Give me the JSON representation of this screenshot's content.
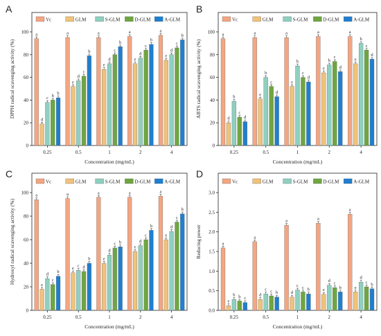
{
  "figure": {
    "colors": {
      "Vc": "#f4a582",
      "GLM": "#f0c27b",
      "S-GLM": "#8fd0c0",
      "D-GLM": "#6ea640",
      "A-GLM": "#1f7fd0"
    }
  },
  "chart_data": [
    {
      "type": "bar",
      "panel": "A",
      "categories": [
        "0.25",
        "0.5",
        "1",
        "2",
        "4"
      ],
      "legend": [
        "Vc",
        "GLM",
        "S-GLM",
        "D-GLM",
        "A-GLM"
      ],
      "xlabel": "Concentration (mg/mL)",
      "ylabel": "DPPH radical scavenging activity (%)",
      "ylim": [
        0,
        100
      ],
      "yticks": [
        0,
        20,
        40,
        60,
        80,
        100
      ],
      "series": [
        {
          "name": "Vc",
          "values": [
            94,
            95,
            95,
            96,
            97
          ],
          "labels": [
            "a",
            "a",
            "a",
            "a",
            "a"
          ]
        },
        {
          "name": "GLM",
          "values": [
            19,
            52,
            67,
            72,
            75
          ],
          "labels": [
            "d",
            "e",
            "e",
            "e",
            "e"
          ]
        },
        {
          "name": "S-GLM",
          "values": [
            38,
            57,
            72,
            77,
            80
          ],
          "labels": [
            "c",
            "d",
            "d",
            "d",
            "d"
          ]
        },
        {
          "name": "D-GLM",
          "values": [
            40,
            61,
            80,
            84,
            86
          ],
          "labels": [
            "b",
            "c",
            "c",
            "c",
            "c"
          ]
        },
        {
          "name": "A-GLM",
          "values": [
            42,
            79,
            87,
            89,
            93
          ],
          "labels": [
            "b",
            "b",
            "b",
            "b",
            "b"
          ]
        }
      ]
    },
    {
      "type": "bar",
      "panel": "B",
      "categories": [
        "0.25",
        "0.5",
        "1",
        "2",
        "4"
      ],
      "legend": [
        "Vc",
        "GLM",
        "S-GLM",
        "D-GLM",
        "A-GLM"
      ],
      "xlabel": "Concentration (mg/mL)",
      "ylabel": "ABTS radical scavenging activity (%)",
      "ylim": [
        0,
        100
      ],
      "yticks": [
        0,
        20,
        40,
        60,
        80,
        100
      ],
      "series": [
        {
          "name": "Vc",
          "values": [
            94,
            95,
            95,
            96,
            96
          ],
          "labels": [
            "a",
            "a",
            "a",
            "a",
            "a"
          ]
        },
        {
          "name": "GLM",
          "values": [
            20,
            41,
            52,
            64,
            72
          ],
          "labels": [
            "d",
            "e",
            "e",
            "e",
            "e"
          ]
        },
        {
          "name": "S-GLM",
          "values": [
            39,
            60,
            70,
            71,
            90
          ],
          "labels": [
            "b",
            "b",
            "b",
            "b",
            "b"
          ]
        },
        {
          "name": "D-GLM",
          "values": [
            25,
            52,
            60,
            74,
            84
          ],
          "labels": [
            "c",
            "c",
            "c",
            "c",
            "c"
          ]
        },
        {
          "name": "A-GLM",
          "values": [
            21,
            43,
            56,
            65,
            76
          ],
          "labels": [
            "d",
            "d",
            "d",
            "d",
            "d"
          ]
        }
      ]
    },
    {
      "type": "bar",
      "panel": "C",
      "categories": [
        "0.25",
        "0.5",
        "1",
        "2",
        "4"
      ],
      "legend": [
        "Vc",
        "GLM",
        "S-GLM",
        "D-GLM",
        "A-GLM"
      ],
      "xlabel": "Concentration (mg/mL)",
      "ylabel": "Hydroxyl radical scavenging activity (%)",
      "ylim": [
        0,
        100
      ],
      "yticks": [
        0,
        20,
        40,
        60,
        80,
        100
      ],
      "series": [
        {
          "name": "Vc",
          "values": [
            94,
            95,
            96,
            96,
            97
          ],
          "labels": [
            "a",
            "a",
            "a",
            "a",
            "a"
          ]
        },
        {
          "name": "GLM",
          "values": [
            18,
            32,
            40,
            50,
            60
          ],
          "labels": [
            "e",
            "e",
            "e",
            "e",
            "e"
          ]
        },
        {
          "name": "S-GLM",
          "values": [
            27,
            34,
            47,
            55,
            67
          ],
          "labels": [
            "d",
            "c",
            "d",
            "d",
            "d"
          ]
        },
        {
          "name": "D-GLM",
          "values": [
            22,
            33,
            53,
            60,
            75
          ],
          "labels": [
            "c",
            "d",
            "c",
            "c",
            "c"
          ]
        },
        {
          "name": "A-GLM",
          "values": [
            29,
            40,
            54,
            68,
            82
          ],
          "labels": [
            "b",
            "b",
            "b",
            "b",
            "b"
          ]
        }
      ]
    },
    {
      "type": "bar",
      "panel": "D",
      "categories": [
        "0.25",
        "0.5",
        "1",
        "2",
        "4"
      ],
      "legend": [
        "Vc",
        "GLM",
        "S-GLM",
        "D-GLM",
        "A-GLM"
      ],
      "xlabel": "Concentration (mg/mL)",
      "ylabel": "Reducing power",
      "ylim": [
        0,
        3.0
      ],
      "yticks": [
        0.0,
        0.5,
        1.0,
        1.5,
        2.0,
        2.5,
        3.0
      ],
      "ytick_labels": [
        "0.0",
        "0.5",
        "1.0",
        "1.5",
        "2.0",
        "2.5",
        "3.0"
      ],
      "series": [
        {
          "name": "Vc",
          "values": [
            1.59,
            1.75,
            2.17,
            2.22,
            2.45
          ],
          "labels": [
            "a",
            "a",
            "a",
            "a",
            "a"
          ]
        },
        {
          "name": "GLM",
          "values": [
            0.12,
            0.28,
            0.34,
            0.41,
            0.47
          ],
          "labels": [
            "e",
            "d",
            "d",
            "e",
            "e"
          ]
        },
        {
          "name": "S-GLM",
          "values": [
            0.28,
            0.42,
            0.52,
            0.64,
            0.72
          ],
          "labels": [
            "b",
            "c",
            "c",
            "d",
            "d"
          ]
        },
        {
          "name": "D-GLM",
          "values": [
            0.24,
            0.37,
            0.47,
            0.58,
            0.6
          ],
          "labels": [
            "b",
            "c",
            "c",
            "c",
            "c"
          ]
        },
        {
          "name": "A-GLM",
          "values": [
            0.2,
            0.34,
            0.42,
            0.47,
            0.55
          ],
          "labels": [
            "c",
            "b",
            "b",
            "b",
            "b"
          ]
        }
      ]
    }
  ]
}
